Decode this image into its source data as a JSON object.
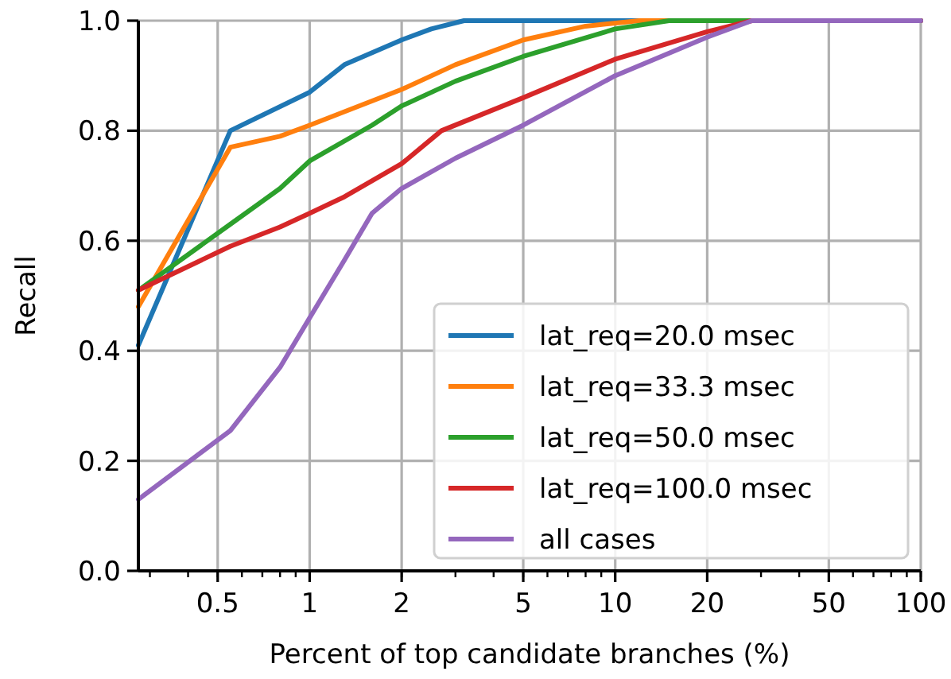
{
  "chart_data": {
    "type": "line",
    "xlabel": "Percent of top candidate branches (%)",
    "ylabel": "Recall",
    "log": "x",
    "grid": true,
    "legend": "bottom right",
    "xlim": [
      0.275,
      100
    ],
    "xticks": [
      0.5,
      1,
      2,
      5,
      10,
      20,
      50,
      100
    ],
    "ylim": [
      0,
      1
    ],
    "yticks": [
      {
        "value": 0,
        "label": "0.0"
      },
      {
        "value": 0.2,
        "label": "0.2"
      },
      {
        "value": 0.4,
        "label": "0.4"
      },
      {
        "value": 0.6,
        "label": "0.6"
      },
      {
        "value": 0.8,
        "label": "0.8"
      },
      {
        "value": 1,
        "label": "1.0"
      }
    ],
    "series": [
      {
        "name": "lat_req=20.0 msec",
        "color": "#1f77b4",
        "x": [
          0.275,
          0.55,
          1,
          1.3,
          2,
          2.5,
          3.2,
          100
        ],
        "values": [
          0.41,
          0.8,
          0.87,
          0.92,
          0.965,
          0.985,
          1.0,
          1.0
        ]
      },
      {
        "name": "lat_req=33.3 msec",
        "color": "#ff7f0e",
        "x": [
          0.275,
          0.55,
          0.8,
          1,
          2,
          3,
          5,
          8,
          12,
          100
        ],
        "values": [
          0.48,
          0.77,
          0.79,
          0.81,
          0.875,
          0.92,
          0.965,
          0.99,
          1.0,
          1.0
        ]
      },
      {
        "name": "lat_req=50.0 msec",
        "color": "#2ca02c",
        "x": [
          0.275,
          0.55,
          0.8,
          1,
          1.6,
          2,
          3,
          5,
          10,
          15,
          100
        ],
        "values": [
          0.51,
          0.63,
          0.695,
          0.745,
          0.81,
          0.845,
          0.89,
          0.935,
          0.985,
          1.0,
          1.0
        ]
      },
      {
        "name": "lat_req=100.0 msec",
        "color": "#d62728",
        "x": [
          0.275,
          0.55,
          0.8,
          1,
          1.3,
          2,
          2.7,
          5,
          10,
          20,
          28,
          100
        ],
        "values": [
          0.51,
          0.59,
          0.625,
          0.65,
          0.68,
          0.74,
          0.8,
          0.86,
          0.93,
          0.98,
          1.0,
          1.0
        ]
      },
      {
        "name": "all cases",
        "color": "#9467bd",
        "x": [
          0.275,
          0.55,
          0.8,
          1,
          1.3,
          1.6,
          2,
          3,
          5,
          10,
          20,
          28,
          100
        ],
        "values": [
          0.13,
          0.255,
          0.37,
          0.46,
          0.565,
          0.65,
          0.695,
          0.75,
          0.81,
          0.9,
          0.97,
          1.0,
          1.0
        ]
      }
    ]
  }
}
